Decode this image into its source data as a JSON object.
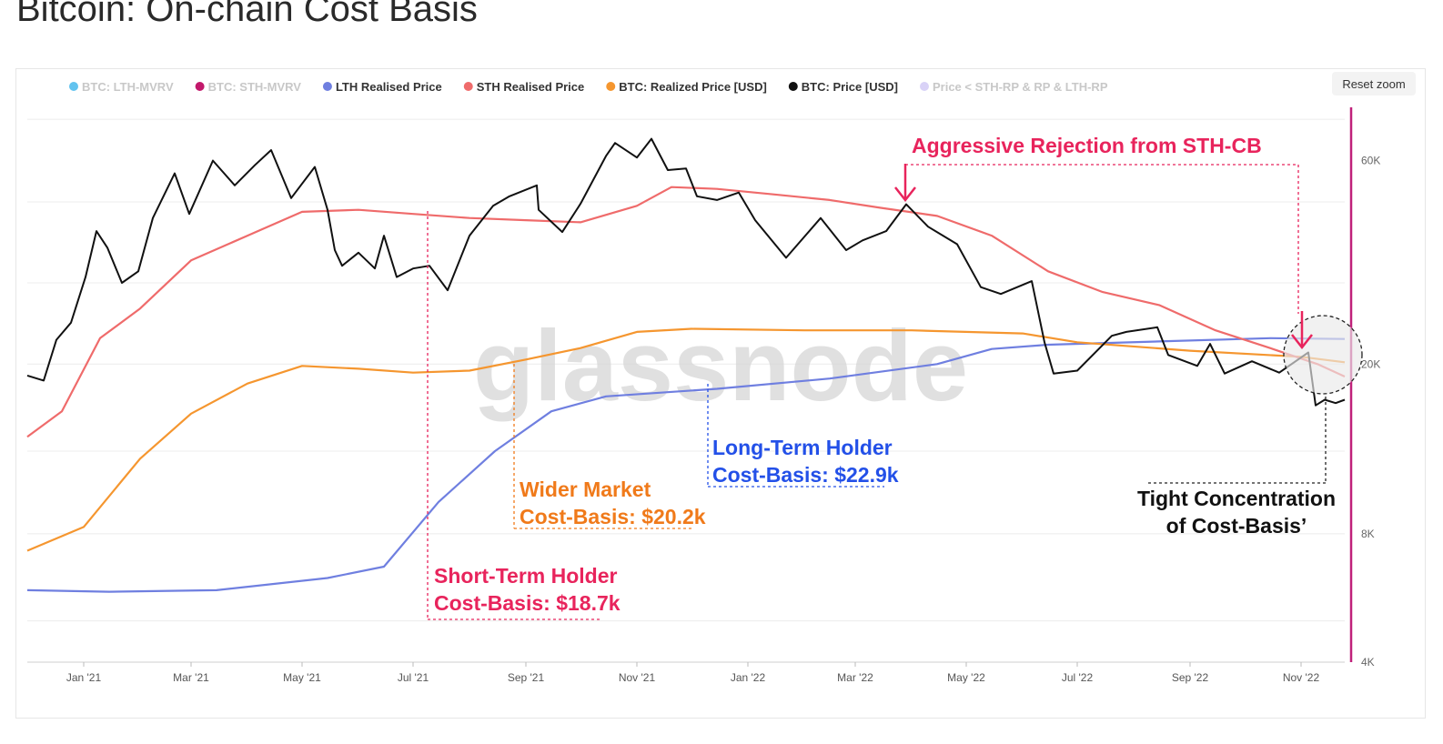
{
  "page": {
    "title": "Bitcoin: On-chain Cost Basis",
    "reset_zoom": "Reset zoom",
    "watermark": "glassnode"
  },
  "colors": {
    "price": "#111111",
    "sth": "#ef6b6b",
    "lth": "#6f7fe0",
    "realized": "#f5962f",
    "accent_pink": "#e8245c",
    "accent_blue": "#2350e8",
    "accent_orange": "#f07a1a",
    "right_axis": "#c0217a"
  },
  "legend": [
    {
      "label": "BTC: LTH-MVRV",
      "color": "#62c3ef",
      "active": false
    },
    {
      "label": "BTC: STH-MVRV",
      "color": "#c2186b",
      "active": false
    },
    {
      "label": "LTH Realised Price",
      "color": "#6f7fe0",
      "active": true
    },
    {
      "label": "STH Realised Price",
      "color": "#ef6b6b",
      "active": true
    },
    {
      "label": "BTC: Realized Price [USD]",
      "color": "#f5962f",
      "active": true
    },
    {
      "label": "BTC: Price [USD]",
      "color": "#111111",
      "active": true
    },
    {
      "label": "Price < STH-RP & RP & LTH-RP",
      "color": "#d9d2f7",
      "active": false
    }
  ],
  "annotations": {
    "sth_rejection": "Aggressive Rejection from STH-CB",
    "sth_cb_line1": "Short-Term Holder",
    "sth_cb_line2": "Cost-Basis: $18.7k",
    "market_cb_line1": "Wider Market",
    "market_cb_line2": "Cost-Basis: $20.2k",
    "lth_cb_line1": "Long-Term Holder",
    "lth_cb_line2": "Cost-Basis: $22.9k",
    "tight_line1": "Tight Concentration",
    "tight_line2": "of Cost-Basis’"
  },
  "chart_data": {
    "type": "line",
    "x_tick_labels": [
      "Jan '21",
      "Mar '21",
      "May '21",
      "Jul '21",
      "Sep '21",
      "Nov '21",
      "Jan '22",
      "Mar '22",
      "May '22",
      "Jul '22",
      "Sep '22",
      "Nov '22"
    ],
    "y_axis": {
      "scale": "log",
      "range": [
        4000,
        80000
      ],
      "tick_labels": [
        "4K",
        "8K",
        "20K",
        "60K"
      ],
      "tick_values": [
        4000,
        8000,
        20000,
        60000
      ]
    },
    "x_range": [
      "2020-12-01",
      "2022-11-25"
    ],
    "grid": true,
    "legend_position": "top",
    "series": [
      {
        "name": "BTC: Price [USD]",
        "points": [
          [
            "2020-12-01",
            18800
          ],
          [
            "2020-12-10",
            18300
          ],
          [
            "2020-12-17",
            22800
          ],
          [
            "2020-12-25",
            25000
          ],
          [
            "2021-01-02",
            32000
          ],
          [
            "2021-01-08",
            41000
          ],
          [
            "2021-01-14",
            37500
          ],
          [
            "2021-01-22",
            31000
          ],
          [
            "2021-01-31",
            33000
          ],
          [
            "2021-02-08",
            44000
          ],
          [
            "2021-02-20",
            56000
          ],
          [
            "2021-02-28",
            45000
          ],
          [
            "2021-03-13",
            60000
          ],
          [
            "2021-03-25",
            52500
          ],
          [
            "2021-04-05",
            58500
          ],
          [
            "2021-04-14",
            63500
          ],
          [
            "2021-04-25",
            49000
          ],
          [
            "2021-05-08",
            58000
          ],
          [
            "2021-05-15",
            46000
          ],
          [
            "2021-05-19",
            37000
          ],
          [
            "2021-05-23",
            34000
          ],
          [
            "2021-06-01",
            36500
          ],
          [
            "2021-06-10",
            33500
          ],
          [
            "2021-06-15",
            40000
          ],
          [
            "2021-06-22",
            32000
          ],
          [
            "2021-07-01",
            33500
          ],
          [
            "2021-07-10",
            34000
          ],
          [
            "2021-07-20",
            29800
          ],
          [
            "2021-08-01",
            40000
          ],
          [
            "2021-08-14",
            47000
          ],
          [
            "2021-08-23",
            49500
          ],
          [
            "2021-09-07",
            52500
          ],
          [
            "2021-09-08",
            46000
          ],
          [
            "2021-09-21",
            40800
          ],
          [
            "2021-10-01",
            47500
          ],
          [
            "2021-10-15",
            61500
          ],
          [
            "2021-10-20",
            66000
          ],
          [
            "2021-11-01",
            61000
          ],
          [
            "2021-11-09",
            67500
          ],
          [
            "2021-11-18",
            57000
          ],
          [
            "2021-11-28",
            57500
          ],
          [
            "2021-12-04",
            49500
          ],
          [
            "2021-12-15",
            48500
          ],
          [
            "2021-12-27",
            50500
          ],
          [
            "2022-01-05",
            43500
          ],
          [
            "2022-01-22",
            35500
          ],
          [
            "2022-02-10",
            44000
          ],
          [
            "2022-02-24",
            37000
          ],
          [
            "2022-03-05",
            39000
          ],
          [
            "2022-03-18",
            41000
          ],
          [
            "2022-03-29",
            47400
          ],
          [
            "2022-04-10",
            42000
          ],
          [
            "2022-04-26",
            38200
          ],
          [
            "2022-05-09",
            30300
          ],
          [
            "2022-05-20",
            29200
          ],
          [
            "2022-06-06",
            31300
          ],
          [
            "2022-06-13",
            22500
          ],
          [
            "2022-06-18",
            19000
          ],
          [
            "2022-07-01",
            19300
          ],
          [
            "2022-07-20",
            23300
          ],
          [
            "2022-07-28",
            23800
          ],
          [
            "2022-08-14",
            24400
          ],
          [
            "2022-08-20",
            21000
          ],
          [
            "2022-09-05",
            19800
          ],
          [
            "2022-09-12",
            22300
          ],
          [
            "2022-09-20",
            19000
          ],
          [
            "2022-10-05",
            20300
          ],
          [
            "2022-10-20",
            19100
          ],
          [
            "2022-11-05",
            21300
          ],
          [
            "2022-11-09",
            16000
          ],
          [
            "2022-11-14",
            16500
          ],
          [
            "2022-11-20",
            16200
          ],
          [
            "2022-11-25",
            16500
          ]
        ]
      },
      {
        "name": "STH Realised Price",
        "points": [
          [
            "2020-12-01",
            13500
          ],
          [
            "2020-12-20",
            15500
          ],
          [
            "2021-01-10",
            23000
          ],
          [
            "2021-02-01",
            27000
          ],
          [
            "2021-03-01",
            35000
          ],
          [
            "2021-04-01",
            40000
          ],
          [
            "2021-05-01",
            45500
          ],
          [
            "2021-06-01",
            46000
          ],
          [
            "2021-07-01",
            45000
          ],
          [
            "2021-08-01",
            44000
          ],
          [
            "2021-09-01",
            43500
          ],
          [
            "2021-10-01",
            43000
          ],
          [
            "2021-11-01",
            47000
          ],
          [
            "2021-11-20",
            52000
          ],
          [
            "2021-12-15",
            51500
          ],
          [
            "2022-01-15",
            50000
          ],
          [
            "2022-02-15",
            48500
          ],
          [
            "2022-03-15",
            46500
          ],
          [
            "2022-04-15",
            44500
          ],
          [
            "2022-05-15",
            40000
          ],
          [
            "2022-06-15",
            33000
          ],
          [
            "2022-07-15",
            29500
          ],
          [
            "2022-08-15",
            27500
          ],
          [
            "2022-09-15",
            24000
          ],
          [
            "2022-10-15",
            21800
          ],
          [
            "2022-11-10",
            20000
          ],
          [
            "2022-11-25",
            18700
          ]
        ]
      },
      {
        "name": "BTC: Realized Price [USD]",
        "points": [
          [
            "2020-12-01",
            7300
          ],
          [
            "2021-01-01",
            8300
          ],
          [
            "2021-02-01",
            12000
          ],
          [
            "2021-03-01",
            15300
          ],
          [
            "2021-04-01",
            18000
          ],
          [
            "2021-05-01",
            19800
          ],
          [
            "2021-06-01",
            19500
          ],
          [
            "2021-07-01",
            19100
          ],
          [
            "2021-08-01",
            19300
          ],
          [
            "2021-09-01",
            20500
          ],
          [
            "2021-10-01",
            21800
          ],
          [
            "2021-11-01",
            23800
          ],
          [
            "2021-12-01",
            24200
          ],
          [
            "2022-02-01",
            24000
          ],
          [
            "2022-04-01",
            24000
          ],
          [
            "2022-06-01",
            23600
          ],
          [
            "2022-07-01",
            22500
          ],
          [
            "2022-09-01",
            21500
          ],
          [
            "2022-11-01",
            20800
          ],
          [
            "2022-11-25",
            20200
          ]
        ]
      },
      {
        "name": "LTH Realised Price",
        "points": [
          [
            "2020-12-01",
            5900
          ],
          [
            "2021-01-15",
            5850
          ],
          [
            "2021-03-15",
            5900
          ],
          [
            "2021-05-15",
            6300
          ],
          [
            "2021-06-15",
            6700
          ],
          [
            "2021-07-15",
            9500
          ],
          [
            "2021-08-15",
            12500
          ],
          [
            "2021-09-15",
            15500
          ],
          [
            "2021-10-15",
            16800
          ],
          [
            "2021-12-15",
            17500
          ],
          [
            "2022-02-15",
            18500
          ],
          [
            "2022-04-15",
            20000
          ],
          [
            "2022-05-15",
            21700
          ],
          [
            "2022-06-15",
            22200
          ],
          [
            "2022-08-15",
            22600
          ],
          [
            "2022-10-15",
            23000
          ],
          [
            "2022-11-25",
            22900
          ]
        ]
      }
    ]
  }
}
